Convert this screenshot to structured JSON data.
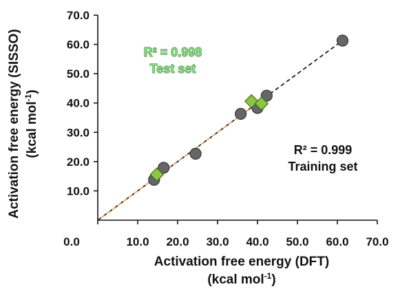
{
  "chart_data": {
    "type": "scatter",
    "title": "",
    "xlabel_line1": "Activation free energy (DFT)",
    "xlabel_line2": "(kcal mol",
    "xlabel_sup": "-1",
    "xlabel_close": ")",
    "ylabel_line1": "Activation free energy (SISSO)",
    "ylabel_line2": "(kcal mol",
    "ylabel_sup": "-1",
    "ylabel_close": ")",
    "xlim": [
      0,
      70
    ],
    "ylim": [
      0,
      70
    ],
    "x_ticks": [
      "0.0",
      "10.0",
      "20.0",
      "30.0",
      "40.0",
      "50.0",
      "60.0",
      "70.0"
    ],
    "y_ticks": [
      "10.0",
      "20.0",
      "30.0",
      "40.0",
      "50.0",
      "60.0",
      "70.0"
    ],
    "grid": false,
    "series": [
      {
        "marker": "circle",
        "color": "#666666",
        "points": [
          {
            "x": 14.1,
            "y": 13.8
          },
          {
            "x": 16.5,
            "y": 17.9
          },
          {
            "x": 24.5,
            "y": 22.7
          },
          {
            "x": 35.8,
            "y": 36.3
          },
          {
            "x": 40.0,
            "y": 38.3
          },
          {
            "x": 42.3,
            "y": 42.5
          },
          {
            "x": 61.3,
            "y": 61.3
          }
        ]
      },
      {
        "marker": "diamond",
        "color": "#8dc63f",
        "points": [
          {
            "x": 14.8,
            "y": 15.6
          },
          {
            "x": 38.5,
            "y": 40.6
          },
          {
            "x": 41.0,
            "y": 39.8
          }
        ]
      }
    ],
    "fit_lines": [
      {
        "style": "dashed",
        "color": "#222222",
        "from": [
          0,
          0
        ],
        "to": [
          61.5,
          61.5
        ]
      },
      {
        "style": "dashed",
        "color": "#f4a460",
        "from": [
          0,
          0
        ],
        "to": [
          41.5,
          41.5
        ]
      }
    ],
    "annotations": [
      {
        "id": "test",
        "line1": "R² = 0.998",
        "line2": "Test set",
        "color": "#7ee07e"
      },
      {
        "id": "train",
        "line1": "R² = 0.999",
        "line2": "Training set",
        "color": "#111111"
      }
    ]
  }
}
